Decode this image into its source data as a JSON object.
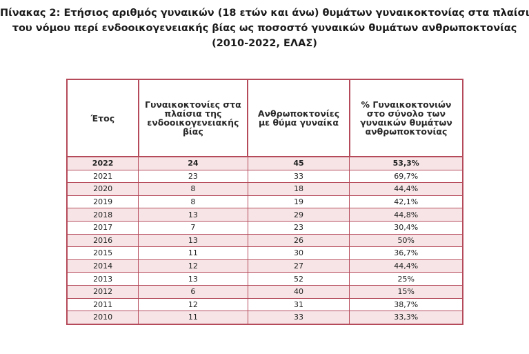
{
  "title": {
    "line1": "Πίνακας 2: Ετήσιος αριθμός γυναικών (18 ετών και άνω) θυμάτων γυναικοκτονίας στα πλαίσια",
    "line2": "του νόμου περί ενδοοικογενειακής βίας ως ποσοστό γυναικών θυμάτων ανθρωποκτονίας",
    "line3": "(2010-2022, ΕΛΑΣ)"
  },
  "table": {
    "headers": [
      "Έτος",
      "Γυναικοκτονίες στα πλαίσια της ενδοοικογενειακής βίας",
      "Ανθρωποκτονίες με θύμα γυναίκα",
      "% Γυναικοκτονιών στο σύνολο των γυναικών θυμάτων ανθρωποκτονίας"
    ],
    "rows": [
      [
        "2022",
        "24",
        "45",
        "53,3%"
      ],
      [
        "2021",
        "23",
        "33",
        "69,7%"
      ],
      [
        "2020",
        "8",
        "18",
        "44,4%"
      ],
      [
        "2019",
        "8",
        "19",
        "42,1%"
      ],
      [
        "2018",
        "13",
        "29",
        "44,8%"
      ],
      [
        "2017",
        "7",
        "23",
        "30,4%"
      ],
      [
        "2016",
        "13",
        "26",
        "50%"
      ],
      [
        "2015",
        "11",
        "30",
        "36,7%"
      ],
      [
        "2014",
        "12",
        "27",
        "44,4%"
      ],
      [
        "2013",
        "13",
        "52",
        "25%"
      ],
      [
        "2012",
        "6",
        "40",
        "15%"
      ],
      [
        "2011",
        "12",
        "31",
        "38,7%"
      ],
      [
        "2010",
        "11",
        "33",
        "33,3%"
      ]
    ]
  },
  "colors": {
    "border": "#b54a5a",
    "row_shade": "#f6e4e6"
  }
}
